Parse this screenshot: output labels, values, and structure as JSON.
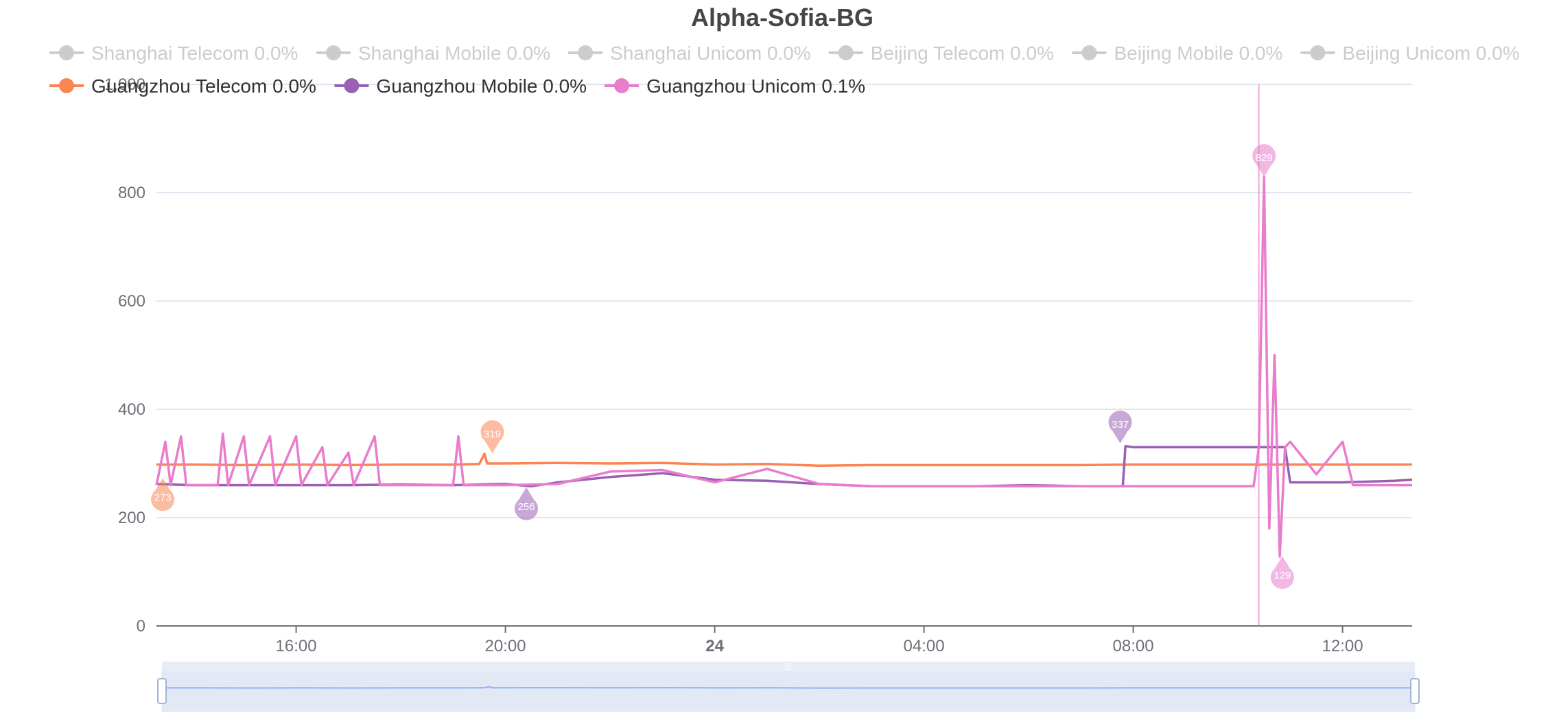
{
  "chart_data": {
    "type": "line",
    "title": "Alpha-Sofia-BG",
    "xlabel": "",
    "ylabel": "",
    "ylim": [
      0,
      1000
    ],
    "xlim_hours": [
      13.33,
      37.33
    ],
    "x_ticks": [
      {
        "label": "16:00",
        "hour": 16,
        "bold": false
      },
      {
        "label": "20:00",
        "hour": 20,
        "bold": false
      },
      {
        "label": "24",
        "hour": 24,
        "bold": true
      },
      {
        "label": "04:00",
        "hour": 28,
        "bold": false
      },
      {
        "label": "08:00",
        "hour": 32,
        "bold": false
      },
      {
        "label": "12:00",
        "hour": 36,
        "bold": false
      }
    ],
    "y_ticks": [
      {
        "label": "0",
        "value": 0
      },
      {
        "label": "200",
        "value": 200
      },
      {
        "label": "400",
        "value": 400
      },
      {
        "label": "600",
        "value": 600
      },
      {
        "label": "800",
        "value": 800
      },
      {
        "label": "1,000",
        "value": 1000
      }
    ],
    "grid": true,
    "legend_position": "top-left",
    "legend": [
      {
        "label": "Shanghai Telecom 0.0%",
        "active": false
      },
      {
        "label": "Shanghai Mobile 0.0%",
        "active": false
      },
      {
        "label": "Shanghai Unicom 0.0%",
        "active": false
      },
      {
        "label": "Beijing Telecom 0.0%",
        "active": false
      },
      {
        "label": "Beijing Mobile 0.0%",
        "active": false
      },
      {
        "label": "Beijing Unicom 0.0%",
        "active": false
      },
      {
        "label": "Guangzhou Telecom 0.0%",
        "active": true,
        "color": "#fc8452"
      },
      {
        "label": "Guangzhou Mobile 0.0%",
        "active": true,
        "color": "#9a60b4"
      },
      {
        "label": "Guangzhou Unicom 0.1%",
        "active": true,
        "color": "#ea7ccc"
      }
    ],
    "inactive_color": "#cccccc",
    "cursor_hour": 34.4,
    "series": [
      {
        "name": "Guangzhou Telecom",
        "color": "#fc8452",
        "points": [
          [
            13.33,
            298
          ],
          [
            14,
            298
          ],
          [
            15,
            297
          ],
          [
            16,
            298
          ],
          [
            17,
            297
          ],
          [
            18,
            298
          ],
          [
            19,
            298
          ],
          [
            19.5,
            299
          ],
          [
            19.6,
            318
          ],
          [
            19.65,
            300
          ],
          [
            20,
            300
          ],
          [
            21,
            301
          ],
          [
            22,
            300
          ],
          [
            23,
            301
          ],
          [
            24,
            298
          ],
          [
            25,
            299
          ],
          [
            26,
            296
          ],
          [
            27,
            297
          ],
          [
            28,
            297
          ],
          [
            29,
            297
          ],
          [
            30,
            297
          ],
          [
            31,
            297
          ],
          [
            32,
            298
          ],
          [
            33,
            298
          ],
          [
            34,
            298
          ],
          [
            35,
            298
          ],
          [
            36,
            298
          ],
          [
            37,
            298
          ],
          [
            37.33,
            298
          ]
        ],
        "markers": [
          {
            "kind": "max",
            "label": "319",
            "hour": 19.75,
            "value": 319
          },
          {
            "kind": "min",
            "label": "273",
            "hour": 13.45,
            "value": 273
          }
        ]
      },
      {
        "name": "Guangzhou Mobile",
        "color": "#9a60b4",
        "points": [
          [
            13.33,
            262
          ],
          [
            14,
            260
          ],
          [
            15,
            260
          ],
          [
            16,
            260
          ],
          [
            17,
            260
          ],
          [
            18,
            261
          ],
          [
            19,
            260
          ],
          [
            20,
            262
          ],
          [
            20.5,
            258
          ],
          [
            21,
            265
          ],
          [
            22,
            275
          ],
          [
            23,
            282
          ],
          [
            24,
            270
          ],
          [
            25,
            268
          ],
          [
            26,
            262
          ],
          [
            27,
            258
          ],
          [
            28,
            258
          ],
          [
            29,
            258
          ],
          [
            30,
            260
          ],
          [
            31,
            258
          ],
          [
            31.8,
            258
          ],
          [
            31.85,
            332
          ],
          [
            32,
            330
          ],
          [
            33,
            330
          ],
          [
            34,
            330
          ],
          [
            34.9,
            330
          ],
          [
            35,
            265
          ],
          [
            36,
            265
          ],
          [
            37,
            268
          ],
          [
            37.33,
            270
          ]
        ],
        "markers": [
          {
            "kind": "max",
            "label": "337",
            "hour": 31.75,
            "value": 337
          },
          {
            "kind": "min",
            "label": "256",
            "hour": 20.4,
            "value": 256
          }
        ]
      },
      {
        "name": "Guangzhou Unicom",
        "color": "#ea7ccc",
        "points": [
          [
            13.33,
            260
          ],
          [
            13.5,
            340
          ],
          [
            13.6,
            260
          ],
          [
            13.8,
            350
          ],
          [
            13.9,
            260
          ],
          [
            14.5,
            260
          ],
          [
            14.6,
            355
          ],
          [
            14.7,
            260
          ],
          [
            15,
            350
          ],
          [
            15.1,
            260
          ],
          [
            15.5,
            350
          ],
          [
            15.6,
            260
          ],
          [
            16,
            350
          ],
          [
            16.1,
            260
          ],
          [
            16.5,
            330
          ],
          [
            16.6,
            260
          ],
          [
            17,
            320
          ],
          [
            17.1,
            260
          ],
          [
            17.5,
            350
          ],
          [
            17.6,
            260
          ],
          [
            18,
            260
          ],
          [
            19,
            260
          ],
          [
            19.1,
            350
          ],
          [
            19.2,
            260
          ],
          [
            20,
            260
          ],
          [
            21,
            262
          ],
          [
            22,
            285
          ],
          [
            23,
            288
          ],
          [
            24,
            265
          ],
          [
            25,
            290
          ],
          [
            26,
            262
          ],
          [
            27,
            258
          ],
          [
            28,
            258
          ],
          [
            29,
            258
          ],
          [
            30,
            258
          ],
          [
            31,
            258
          ],
          [
            32,
            258
          ],
          [
            33,
            258
          ],
          [
            34,
            258
          ],
          [
            34.3,
            258
          ],
          [
            34.4,
            330
          ],
          [
            34.5,
            829
          ],
          [
            34.6,
            180
          ],
          [
            34.7,
            500
          ],
          [
            34.8,
            128
          ],
          [
            34.9,
            330
          ],
          [
            35,
            340
          ],
          [
            35.5,
            280
          ],
          [
            36,
            340
          ],
          [
            36.2,
            260
          ],
          [
            37,
            260
          ],
          [
            37.33,
            260
          ]
        ],
        "markers": [
          {
            "kind": "max",
            "label": "829",
            "hour": 34.5,
            "value": 829
          },
          {
            "kind": "min",
            "label": "129",
            "hour": 34.85,
            "value": 129
          }
        ]
      }
    ],
    "zoom_slider": {
      "start_percent": 0,
      "end_percent": 100,
      "handle_glyph": "|||"
    }
  }
}
